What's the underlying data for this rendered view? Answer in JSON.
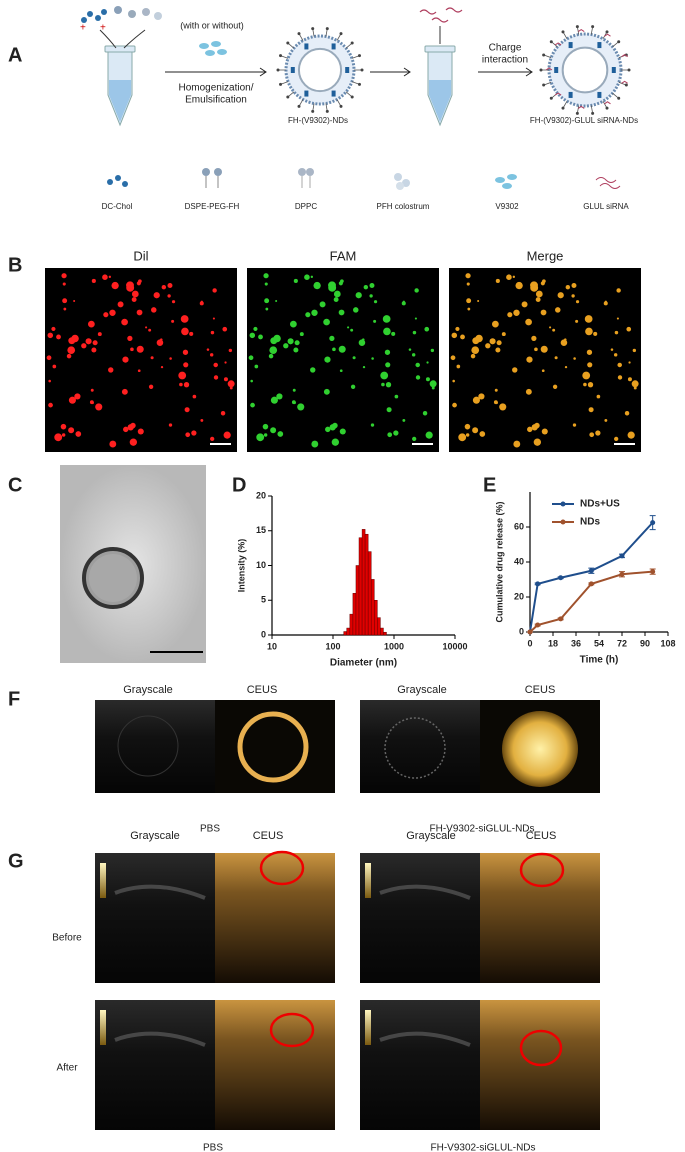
{
  "figure": {
    "panel_labels": [
      "A",
      "B",
      "C",
      "D",
      "E",
      "F",
      "G"
    ],
    "panel_a": {
      "top_note": "(with or without)",
      "step1": [
        "Homogenization/",
        "Emulsification"
      ],
      "product1": "FH-(V9302)-NDs",
      "step2": [
        "Charge",
        "interaction"
      ],
      "product2": "FH-(V9302)-GLUL siRNA-NDs",
      "legend": [
        "DC-Chol",
        "DSPE-PEG-FH",
        "DPPC",
        "PFH colostrum",
        "V9302",
        "GLUL siRNA"
      ]
    },
    "panel_b": {
      "titles": [
        "Dil",
        "FAM",
        "Merge"
      ]
    },
    "panel_f": {
      "column_titles": [
        "Grayscale",
        "CEUS",
        "Grayscale",
        "CEUS"
      ],
      "groups": [
        "PBS",
        "FH-V9302-siGLUL-NDs"
      ]
    },
    "panel_g": {
      "column_titles": [
        "Grayscale",
        "CEUS",
        "Grayscale",
        "CEUS"
      ],
      "rows": [
        "Before",
        "After"
      ],
      "groups": [
        "PBS",
        "FH-V9302-siGLUL-NDs"
      ]
    }
  },
  "chart_data": [
    {
      "type": "histogram",
      "xlabel": "Diameter (nm)",
      "ylabel": "Intensity (%)",
      "bins": [
        150,
        168,
        189,
        212,
        238,
        267,
        300,
        336,
        377,
        423,
        475,
        533,
        598,
        671,
        753
      ],
      "values": [
        0.5,
        1,
        3,
        6,
        10,
        14,
        15.2,
        14.5,
        12,
        8,
        5,
        2.5,
        1,
        0.4
      ],
      "color": "#e00000",
      "xscale": "log",
      "xlim": [
        10,
        10000
      ],
      "xticks": [
        10,
        100,
        1000,
        10000
      ],
      "ylim": [
        0,
        20
      ],
      "yticks": [
        0,
        5,
        10,
        15,
        20
      ]
    },
    {
      "type": "line",
      "xlabel": "Time (h)",
      "ylabel": "Cumulative drug release (%)",
      "x": [
        0,
        6,
        24,
        48,
        72,
        96
      ],
      "series": [
        {
          "name": "NDs+US",
          "color": "#1f4e8c",
          "values": [
            0,
            27.5,
            31,
            35,
            43.5,
            62.5
          ],
          "errors": [
            0,
            0.5,
            0.5,
            1.5,
            1,
            4
          ]
        },
        {
          "name": "NDs",
          "color": "#a0522d",
          "values": [
            0,
            4,
            7.5,
            27.5,
            33,
            34.5
          ],
          "errors": [
            0,
            0.5,
            0.5,
            0.5,
            1.5,
            1.5
          ]
        }
      ],
      "xlim": [
        0,
        108
      ],
      "xticks": [
        0,
        18,
        36,
        54,
        72,
        90,
        108
      ],
      "ylim": [
        0,
        80
      ],
      "yticks": [
        0,
        20,
        40,
        60
      ],
      "legend": "upper left"
    }
  ]
}
